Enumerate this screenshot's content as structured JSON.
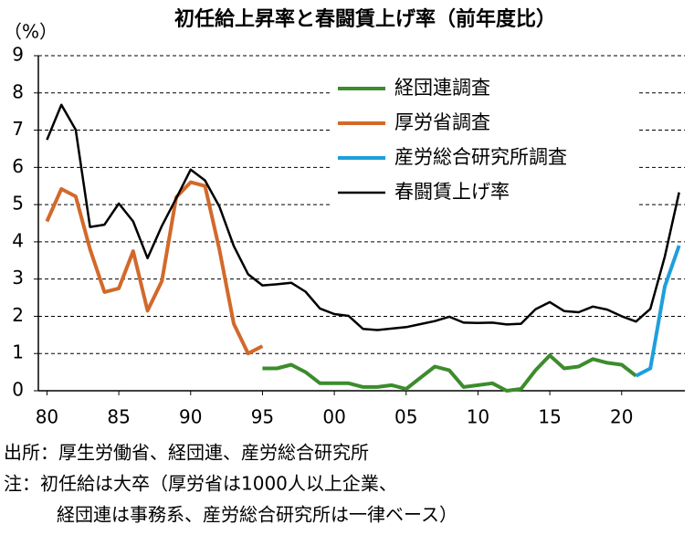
{
  "chart_data": {
    "type": "line",
    "title": "初任給上昇率と春闘賃上げ率（前年度比）",
    "y_label": "（%）",
    "x": [
      1980,
      1981,
      1982,
      1983,
      1984,
      1985,
      1986,
      1987,
      1988,
      1989,
      1990,
      1991,
      1992,
      1993,
      1994,
      1995,
      1996,
      1997,
      1998,
      1999,
      2000,
      2001,
      2002,
      2003,
      2004,
      2005,
      2006,
      2007,
      2008,
      2009,
      2010,
      2011,
      2012,
      2013,
      2014,
      2015,
      2016,
      2017,
      2018,
      2019,
      2020,
      2021,
      2022,
      2023,
      2024
    ],
    "series": [
      {
        "name": "経団連調査",
        "color": "#3c8c2c",
        "values": [
          null,
          null,
          null,
          null,
          null,
          null,
          null,
          null,
          null,
          null,
          null,
          null,
          null,
          null,
          null,
          0.6,
          0.6,
          0.7,
          0.5,
          0.2,
          0.2,
          0.2,
          0.1,
          0.1,
          0.15,
          0.05,
          0.35,
          0.65,
          0.55,
          0.1,
          0.15,
          0.2,
          0.0,
          0.05,
          0.55,
          0.95,
          0.6,
          0.65,
          0.85,
          0.75,
          0.7,
          0.4,
          null,
          null,
          null
        ]
      },
      {
        "name": "厚労省調査",
        "color": "#d2692a",
        "values": [
          4.55,
          5.42,
          5.22,
          3.8,
          2.65,
          2.75,
          3.75,
          2.15,
          2.95,
          5.2,
          5.6,
          5.5,
          3.8,
          1.8,
          1.0,
          1.2,
          null,
          null,
          null,
          null,
          null,
          null,
          null,
          null,
          null,
          null,
          null,
          null,
          null,
          null,
          null,
          null,
          null,
          null,
          null,
          null,
          null,
          null,
          null,
          null,
          null,
          null,
          null,
          null,
          null
        ]
      },
      {
        "name": "産労総合研究所調査",
        "color": "#1e9fdc",
        "values": [
          null,
          null,
          null,
          null,
          null,
          null,
          null,
          null,
          null,
          null,
          null,
          null,
          null,
          null,
          null,
          null,
          null,
          null,
          null,
          null,
          null,
          null,
          null,
          null,
          null,
          null,
          null,
          null,
          null,
          null,
          null,
          null,
          null,
          null,
          null,
          null,
          null,
          null,
          null,
          null,
          null,
          0.4,
          0.6,
          2.8,
          3.9
        ]
      },
      {
        "name": "春闘賃上げ率",
        "color": "#000000",
        "values": [
          6.74,
          7.68,
          7.01,
          4.4,
          4.46,
          5.03,
          4.55,
          3.56,
          4.43,
          5.17,
          5.94,
          5.65,
          4.95,
          3.89,
          3.13,
          2.83,
          2.86,
          2.9,
          2.66,
          2.21,
          2.06,
          2.01,
          1.66,
          1.63,
          1.67,
          1.71,
          1.79,
          1.87,
          1.99,
          1.83,
          1.82,
          1.83,
          1.78,
          1.8,
          2.19,
          2.38,
          2.14,
          2.11,
          2.26,
          2.18,
          2.0,
          1.86,
          2.2,
          3.6,
          5.33
        ]
      }
    ],
    "xlim": [
      1979.4,
      2024.4
    ],
    "xticks": [
      {
        "value": 1980,
        "label": "80"
      },
      {
        "value": 1985,
        "label": "85"
      },
      {
        "value": 1990,
        "label": "90"
      },
      {
        "value": 1995,
        "label": "95"
      },
      {
        "value": 2000,
        "label": "00"
      },
      {
        "value": 2005,
        "label": "05"
      },
      {
        "value": 2010,
        "label": "10"
      },
      {
        "value": 2015,
        "label": "15"
      },
      {
        "value": 2020,
        "label": "20"
      }
    ],
    "ylim": [
      0,
      9
    ],
    "yticks": [
      0,
      1,
      2,
      3,
      4,
      5,
      6,
      7,
      8,
      9
    ],
    "grid": true,
    "legend": "top-center",
    "source": "出所：厚生労働省、経団連、産労総合研究所",
    "notes": [
      "注：初任給は大卒（厚労省は1000人以上企業、",
      "経団連は事務系、産労総合研究所は一律ベース）"
    ]
  }
}
